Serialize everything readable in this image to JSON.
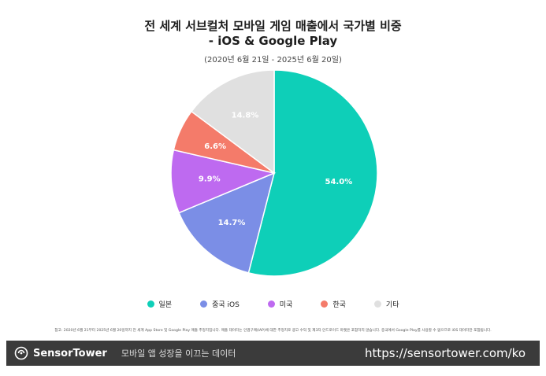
{
  "chart_data": {
    "type": "pie",
    "title": "전 세계 서브컬처 모바일 게임 매출에서 국가별 비중",
    "title_line2": "- iOS & Google Play",
    "subtitle": "(2020년 6월 21일 - 2025년 6월 20일)",
    "categories": [
      "일본",
      "중국 iOS",
      "미국",
      "한국",
      "기타"
    ],
    "values": [
      54.0,
      14.7,
      9.9,
      6.6,
      14.8
    ],
    "data_labels": [
      "54.0%",
      "14.7%",
      "9.9%",
      "6.6%",
      "14.8%"
    ],
    "colors": [
      "#0ecfb8",
      "#7b8ee6",
      "#be6af0",
      "#f47b6a",
      "#e0e0e0"
    ],
    "label_colors": [
      "#ffffff",
      "#ffffff",
      "#ffffff",
      "#ffffff",
      "#ffffff"
    ],
    "start_angle_deg": 0,
    "direction": "clockwise",
    "legend_position": "bottom"
  },
  "note": "참고: 2020년 6월 21부터 2025년 6월 20일까지 전 세계 App Store 및 Google Play 매출 추정치입니다. 매출 데이터는 인앱구매(IAP)에 대한 추정치로 광고 수익 및 제3자 안드로이드 마켓은 포함하지 않습니다. 중국에서 Google Play를 사용할 수 없으므로 iOS 데이터만 포함됩니다.",
  "footer": {
    "brand": "SensorTower",
    "tagline": "모바일 앱 성장을 이끄는 데이터",
    "url": "https://sensortower.com/ko"
  }
}
